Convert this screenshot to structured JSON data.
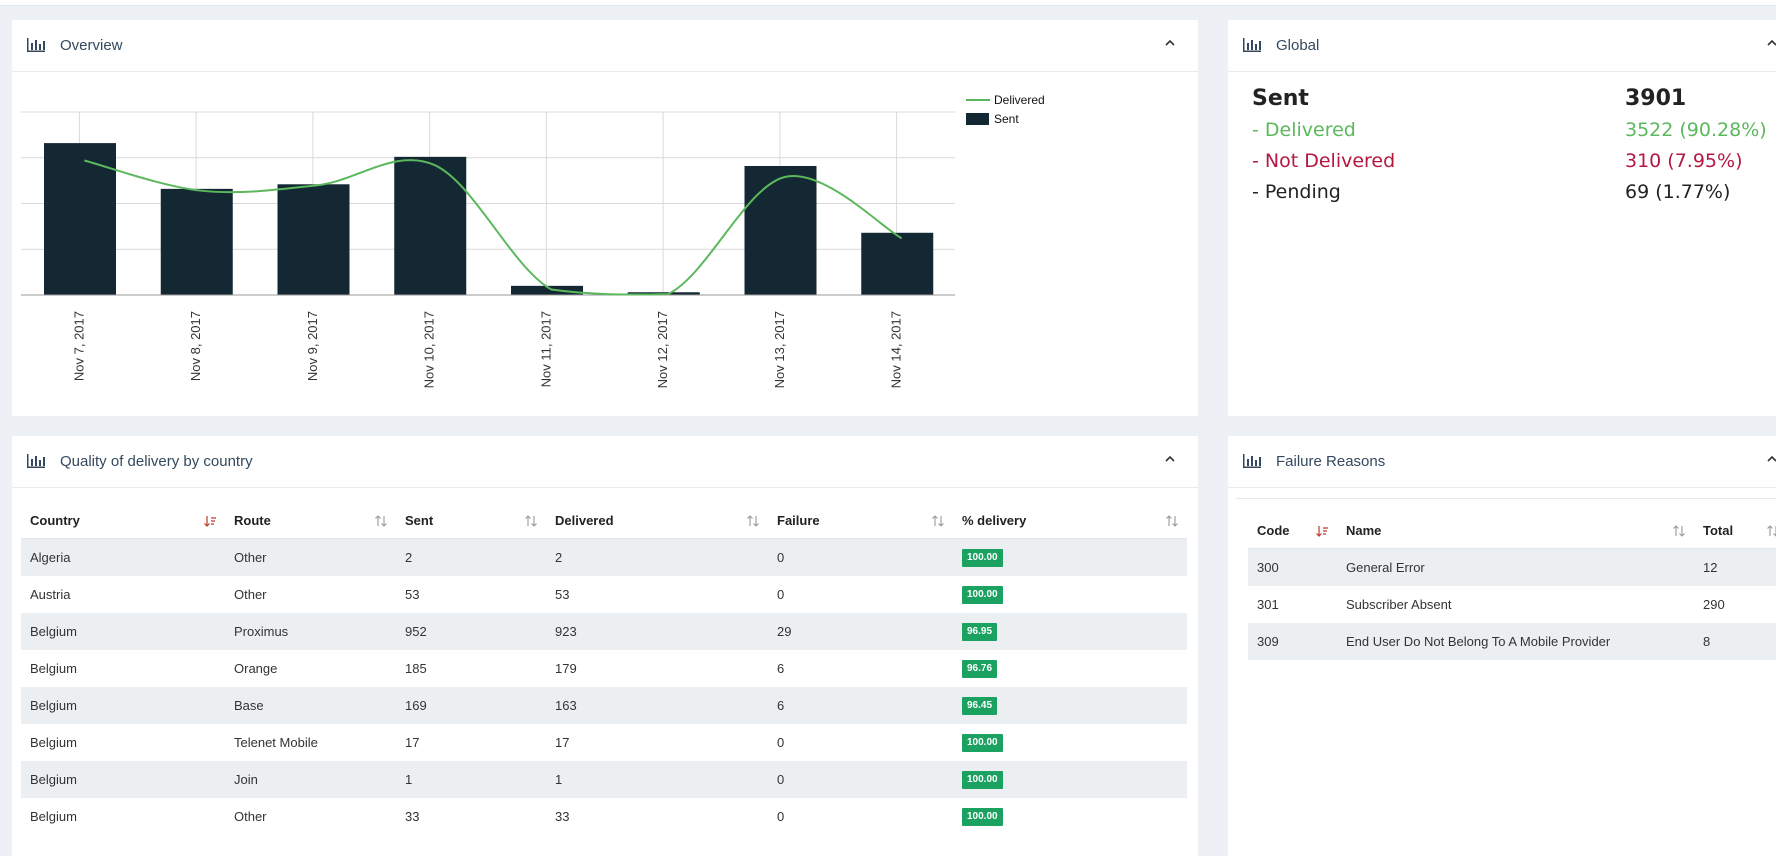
{
  "overview": {
    "title": "Overview",
    "legend": {
      "delivered": "Delivered",
      "sent": "Sent"
    }
  },
  "chart_data": {
    "type": "bar",
    "categories": [
      "Nov 7, 2017",
      "Nov 8, 2017",
      "Nov 9, 2017",
      "Nov 10, 2017",
      "Nov 11, 2017",
      "Nov 12, 2017",
      "Nov 13, 2017",
      "Nov 14, 2017"
    ],
    "series": [
      {
        "name": "Sent",
        "type": "bar",
        "values": [
          830,
          580,
          605,
          755,
          50,
          15,
          705,
          340
        ]
      },
      {
        "name": "Delivered",
        "type": "line",
        "values": [
          735,
          570,
          600,
          710,
          30,
          5,
          645,
          310
        ]
      }
    ],
    "ylim": [
      0,
      1000
    ],
    "grid": true,
    "legend_position": "right",
    "colors": {
      "Sent": "#142833",
      "Delivered": "#5cb85c"
    }
  },
  "global": {
    "title": "Global",
    "sent_label": "Sent",
    "sent_value": "3901",
    "delivered_label": "- Delivered",
    "delivered_value": "3522 (90.28%)",
    "not_delivered_label": "- Not Delivered",
    "not_delivered_value": "310 (7.95%)",
    "pending_label": "- Pending",
    "pending_value": "69 (1.77%)"
  },
  "quality": {
    "title": "Quality of delivery by country",
    "columns": [
      "Country",
      "Route",
      "Sent",
      "Delivered",
      "Failure",
      "% delivery"
    ],
    "rows": [
      [
        "Algeria",
        "Other",
        "2",
        "2",
        "0",
        "100.00"
      ],
      [
        "Austria",
        "Other",
        "53",
        "53",
        "0",
        "100.00"
      ],
      [
        "Belgium",
        "Proximus",
        "952",
        "923",
        "29",
        "96.95"
      ],
      [
        "Belgium",
        "Orange",
        "185",
        "179",
        "6",
        "96.76"
      ],
      [
        "Belgium",
        "Base",
        "169",
        "163",
        "6",
        "96.45"
      ],
      [
        "Belgium",
        "Telenet Mobile",
        "17",
        "17",
        "0",
        "100.00"
      ],
      [
        "Belgium",
        "Join",
        "1",
        "1",
        "0",
        "100.00"
      ],
      [
        "Belgium",
        "Other",
        "33",
        "33",
        "0",
        "100.00"
      ]
    ]
  },
  "failure": {
    "title": "Failure Reasons",
    "columns": [
      "Code",
      "Name",
      "Total"
    ],
    "rows": [
      [
        "300",
        "General Error",
        "12"
      ],
      [
        "301",
        "Subscriber Absent",
        "290"
      ],
      [
        "309",
        "End User Do Not Belong To A Mobile Provider",
        "8"
      ]
    ]
  },
  "colors": {
    "accent_red": "#b5173f",
    "accent_green": "#5cb85c",
    "badge_green": "#1ba160",
    "bar_dark": "#142833"
  }
}
